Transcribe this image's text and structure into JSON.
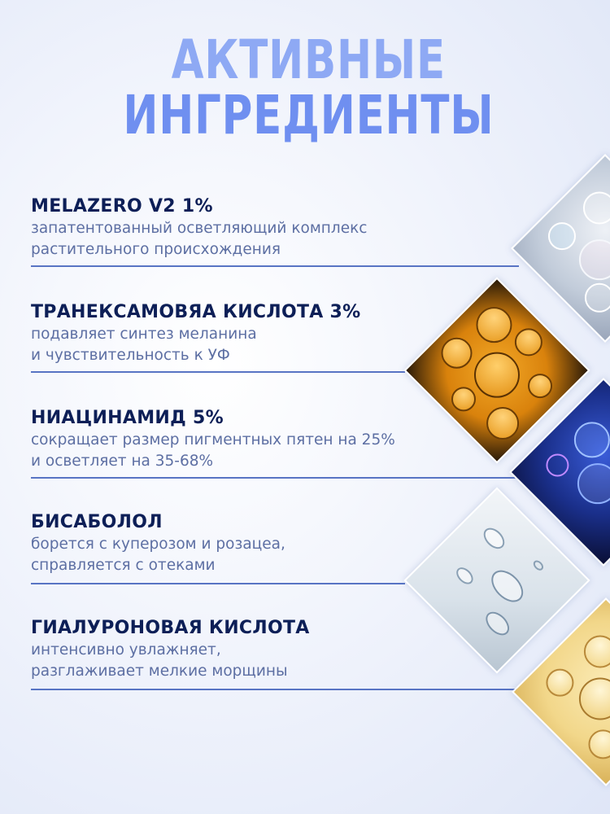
{
  "title": {
    "line1": "АКТИВНЫЕ",
    "line2": "ИНГРЕДИЕНТЫ"
  },
  "ingredients": [
    {
      "name": "MELAZERO V2 1%",
      "line1": "запатентованный осветляющий комплекс",
      "line2": "растительного происхождения"
    },
    {
      "name": "ТРАНЕКСАМОВЯА КИСЛОТА 3%",
      "line1": "подавляет синтез меланина",
      "line2": "и чувствительность к УФ"
    },
    {
      "name": "НИАЦИНАМИД 5%",
      "line1": "сокращает размер пигментных пятен на 25%",
      "line2": "и осветляет на 35-68%"
    },
    {
      "name": "БИСАБОЛОЛ",
      "line1": "борется с куперозом и розацеа,",
      "line2": "справляется с отеками"
    },
    {
      "name": "ГИАЛУРОНОВАЯ КИСЛОТА",
      "line1": "интенсивно увлажняет,",
      "line2": "разглаживает мелкие морщины"
    }
  ],
  "images": [
    {
      "name": "clear-bubbles-image",
      "color": "#c9d3e2"
    },
    {
      "name": "orange-oil-bubbles-image",
      "color": "#e79a1e"
    },
    {
      "name": "blue-space-bubbles-image",
      "color": "#1a2f8a"
    },
    {
      "name": "water-droplets-image",
      "color": "#dfe7ee"
    },
    {
      "name": "yellow-oil-bubbles-image",
      "color": "#f2d78a"
    }
  ]
}
